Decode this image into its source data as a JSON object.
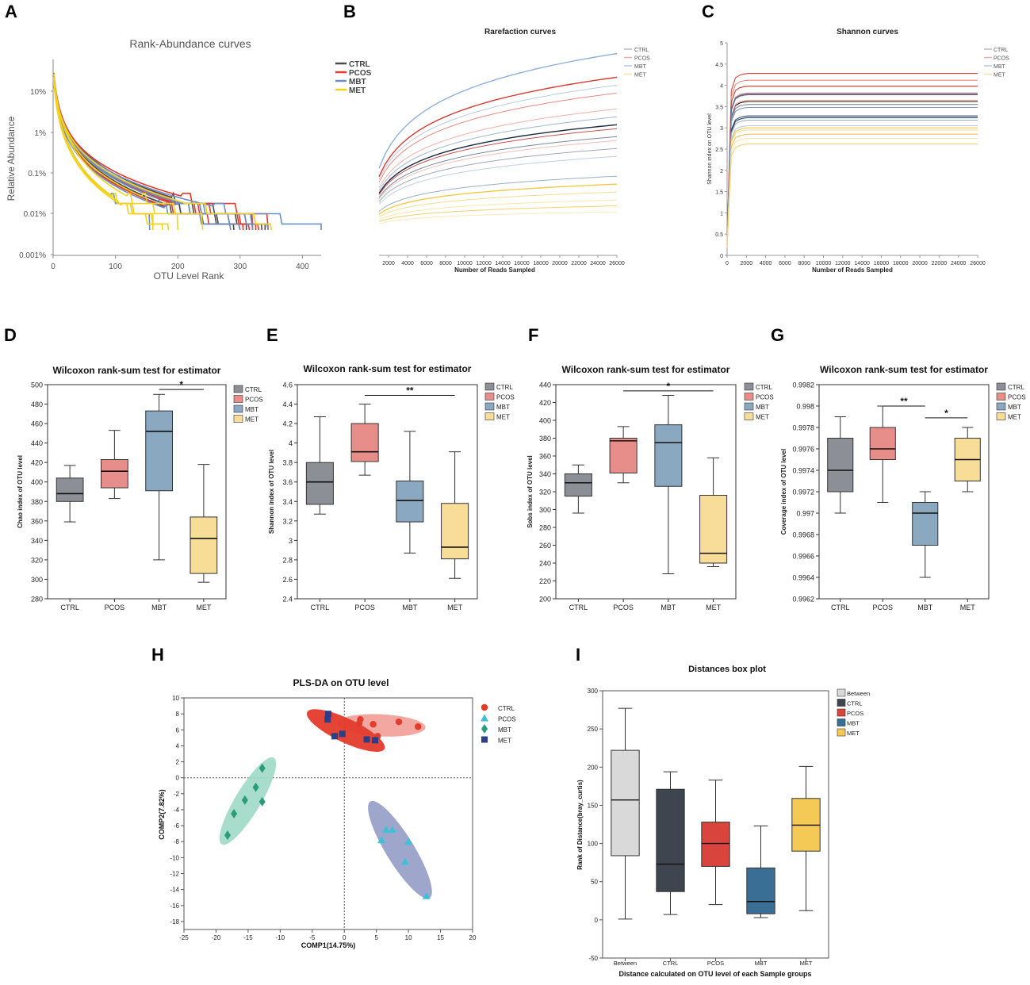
{
  "colors": {
    "CTRL": "#4a4a4a",
    "PCOS": "#e8382a",
    "MBT": "#6a8fc6",
    "MET": "#f2d21c",
    "box_ctrl": "#8c8f96",
    "box_pcos": "#e88e8a",
    "box_mbt": "#8aa8c0",
    "box_met": "#f8dd98",
    "i_between": "#d9d9d9",
    "i_ctrl": "#3f454e",
    "i_pcos": "#d9443c",
    "i_mbt": "#3b6e94",
    "i_met": "#f5c955",
    "h_ctrl": "#e33b2c",
    "h_pcos": "#3fbfd8",
    "h_mbt": "#2a9c7a",
    "h_met": "#2c3e86"
  },
  "chart_data": [
    {
      "id": "A",
      "panel_letter": "A",
      "type": "line",
      "title": "Rank-Abundance curves",
      "xlabel": "OTU Level Rank",
      "ylabel": "Relative Abundance",
      "xlim": [
        0,
        430
      ],
      "xticks": [
        "0",
        "100",
        "200",
        "300",
        "400"
      ],
      "yscale": "log",
      "ylim": [
        1e-05,
        0.5
      ],
      "yticks": [
        "10%",
        "1%",
        "0.1%",
        "0.01%",
        "0.001%"
      ],
      "legend": [
        "CTRL",
        "PCOS",
        "MBT",
        "MET"
      ],
      "series": [
        {
          "name": "CTRL",
          "endpoints": [
            300,
            320,
            340,
            310,
            290,
            335
          ]
        },
        {
          "name": "PCOS",
          "endpoints": [
            320,
            330,
            345,
            315,
            305,
            325
          ]
        },
        {
          "name": "MBT",
          "endpoints": [
            430,
            345,
            300,
            285,
            320,
            155
          ]
        },
        {
          "name": "MET",
          "endpoints": [
            160,
            175,
            185,
            200,
            350,
            240
          ]
        }
      ]
    },
    {
      "id": "B",
      "panel_letter": "B",
      "type": "line",
      "title": "Rarefaction curves",
      "xlabel": "Number of Reads Sampled",
      "ylabel": "",
      "xlim": [
        1000,
        26000
      ],
      "xticks": [
        "2000",
        "4000",
        "6000",
        "8000",
        "10000",
        "12000",
        "14000",
        "16000",
        "18000",
        "20000",
        "22000",
        "24000",
        "26000"
      ],
      "legend": [
        "CTRL",
        "PCOS",
        "MBT",
        "MET"
      ],
      "series": [
        {
          "name": "CTRL",
          "finals": [
            0.62,
            0.56,
            0.5
          ]
        },
        {
          "name": "PCOS",
          "finals": [
            0.86,
            0.78,
            0.7,
            0.6,
            0.54
          ]
        },
        {
          "name": "MBT",
          "finals": [
            0.98,
            0.82,
            0.66,
            0.46,
            0.36
          ]
        },
        {
          "name": "MET",
          "finals": [
            0.32,
            0.28,
            0.24,
            0.21,
            0.18
          ]
        }
      ]
    },
    {
      "id": "C",
      "panel_letter": "C",
      "type": "line",
      "title": "Shannon curves",
      "xlabel": "Number of Reads Sampled",
      "ylabel": "Shannon index on OTU level",
      "xlim": [
        0,
        26000
      ],
      "ylim": [
        0,
        5
      ],
      "xticks": [
        "0",
        "2000",
        "4000",
        "6000",
        "8000",
        "10000",
        "12000",
        "14000",
        "16000",
        "18000",
        "20000",
        "22000",
        "24000",
        "26000"
      ],
      "yticks": [
        "0",
        "0.5",
        "1",
        "1.5",
        "2",
        "2.5",
        "3",
        "3.5",
        "4",
        "4.5",
        "5"
      ],
      "legend": [
        "CTRL",
        "PCOS",
        "MBT",
        "MET"
      ],
      "series": [
        {
          "name": "CTRL",
          "values": [
            3.62,
            3.55,
            3.24,
            3.82
          ]
        },
        {
          "name": "PCOS",
          "values": [
            4.28,
            4.12,
            3.98,
            3.8,
            3.65
          ]
        },
        {
          "name": "MBT",
          "values": [
            3.78,
            3.48,
            3.28,
            3.18,
            3.05
          ]
        },
        {
          "name": "MET",
          "values": [
            3.0,
            2.95,
            2.85,
            2.75,
            2.62
          ]
        }
      ]
    },
    {
      "id": "D",
      "panel_letter": "D",
      "type": "box",
      "title": "Wilcoxon rank-sum test for estimator",
      "ylabel": "Chao index of OTU level",
      "ylim": [
        280,
        500
      ],
      "yticks": [
        "280",
        "300",
        "320",
        "340",
        "360",
        "380",
        "400",
        "420",
        "440",
        "460",
        "480",
        "500"
      ],
      "categories": [
        "CTRL",
        "PCOS",
        "MBT",
        "MET"
      ],
      "boxes": [
        {
          "min": 359,
          "q1": 380,
          "median": 388,
          "q3": 404,
          "max": 417
        },
        {
          "min": 383,
          "q1": 394,
          "median": 411,
          "q3": 423,
          "max": 453
        },
        {
          "min": 320,
          "q1": 391,
          "median": 452,
          "q3": 473,
          "max": 490
        },
        {
          "min": 297,
          "q1": 306,
          "median": 342,
          "q3": 364,
          "max": 418
        }
      ],
      "significance": [
        {
          "from": 2,
          "to": 3,
          "label": "*",
          "y": 495
        }
      ],
      "legend": [
        "CTRL",
        "PCOS",
        "MBT",
        "MET"
      ]
    },
    {
      "id": "E",
      "panel_letter": "E",
      "type": "box",
      "title": "Wilcoxon rank-sum test for estimator",
      "ylabel": "Shannon index of OTU level",
      "ylim": [
        2.4,
        4.6
      ],
      "yticks": [
        "2.4",
        "2.6",
        "2.8",
        "3",
        "3.2",
        "3.4",
        "3.6",
        "3.8",
        "4",
        "4.2",
        "4.4",
        "4.6"
      ],
      "categories": [
        "CTRL",
        "PCOS",
        "MBT",
        "MET"
      ],
      "boxes": [
        {
          "min": 3.27,
          "q1": 3.37,
          "median": 3.6,
          "q3": 3.8,
          "max": 4.27
        },
        {
          "min": 3.67,
          "q1": 3.81,
          "median": 3.91,
          "q3": 4.2,
          "max": 4.4
        },
        {
          "min": 2.87,
          "q1": 3.19,
          "median": 3.41,
          "q3": 3.61,
          "max": 4.12
        },
        {
          "min": 2.61,
          "q1": 2.81,
          "median": 2.93,
          "q3": 3.38,
          "max": 3.91
        }
      ],
      "significance": [
        {
          "from": 1,
          "to": 3,
          "label": "**",
          "y": 4.49
        }
      ],
      "legend": [
        "CTRL",
        "PCOS",
        "MBT",
        "MET"
      ]
    },
    {
      "id": "F",
      "panel_letter": "F",
      "type": "box",
      "title": "Wilcoxon rank-sum test for estimator",
      "ylabel": "Sobs index of OTU level",
      "ylim": [
        200,
        440
      ],
      "yticks": [
        "200",
        "220",
        "240",
        "260",
        "280",
        "300",
        "320",
        "340",
        "360",
        "380",
        "400",
        "420",
        "440"
      ],
      "categories": [
        "CTRL",
        "PCOS",
        "MBT",
        "MET"
      ],
      "boxes": [
        {
          "min": 296,
          "q1": 315,
          "median": 330,
          "q3": 340,
          "max": 350
        },
        {
          "min": 330,
          "q1": 341,
          "median": 377,
          "q3": 380,
          "max": 393
        },
        {
          "min": 228,
          "q1": 326,
          "median": 375,
          "q3": 395,
          "max": 428
        },
        {
          "min": 236,
          "q1": 240,
          "median": 251,
          "q3": 316,
          "max": 358
        }
      ],
      "significance": [
        {
          "from": 1,
          "to": 3,
          "label": "*",
          "y": 433
        }
      ],
      "legend": [
        "CTRL",
        "PCOS",
        "MBT",
        "MET"
      ]
    },
    {
      "id": "G",
      "panel_letter": "G",
      "type": "box",
      "title": "Wilcoxon rank-sum test for estimator",
      "ylabel": "Coverage index of OTU level",
      "ylim": [
        0.9962,
        0.9982
      ],
      "yticks": [
        "0.9962",
        "0.9964",
        "0.9966",
        "0.9968",
        "0.997",
        "0.9972",
        "0.9974",
        "0.9976",
        "0.9978",
        "0.998",
        "0.9982"
      ],
      "categories": [
        "CTRL",
        "PCOS",
        "MBT",
        "MET"
      ],
      "boxes": [
        {
          "min": 0.997,
          "q1": 0.9972,
          "median": 0.9974,
          "q3": 0.9977,
          "max": 0.9979
        },
        {
          "min": 0.9971,
          "q1": 0.9975,
          "median": 0.9976,
          "q3": 0.9978,
          "max": 0.998
        },
        {
          "min": 0.9964,
          "q1": 0.9967,
          "median": 0.997,
          "q3": 0.9971,
          "max": 0.9972
        },
        {
          "min": 0.9972,
          "q1": 0.9973,
          "median": 0.9975,
          "q3": 0.9977,
          "max": 0.9978
        }
      ],
      "significance": [
        {
          "from": 1,
          "to": 2,
          "label": "**",
          "y": 0.998
        },
        {
          "from": 2,
          "to": 3,
          "label": "*",
          "y": 0.99789
        }
      ],
      "legend": [
        "CTRL",
        "PCOS",
        "MBT",
        "MET"
      ]
    },
    {
      "id": "H",
      "panel_letter": "H",
      "type": "scatter",
      "title": "PLS-DA on OTU level",
      "xlabel": "COMP1(14.75%)",
      "ylabel": "COMP2(7.82%)",
      "xlim": [
        -25,
        20
      ],
      "ylim": [
        -19,
        10
      ],
      "xticks": [
        "-25",
        "-20",
        "-15",
        "-10",
        "-5",
        "0",
        "5",
        "10",
        "15",
        "20"
      ],
      "yticks": [
        "-18",
        "-16",
        "-14",
        "-12",
        "-10",
        "-8",
        "-6",
        "-4",
        "-2",
        "0",
        "2",
        "4",
        "6",
        "8",
        "10"
      ],
      "legend": [
        "CTRL",
        "PCOS",
        "MBT",
        "MET"
      ],
      "series": [
        {
          "name": "CTRL",
          "marker": "circle",
          "x": [
            2.5,
            2.3,
            4.5,
            8.5,
            11.5,
            5.2
          ],
          "y": [
            7.3,
            6.8,
            6.7,
            7.0,
            6.4,
            5.2
          ]
        },
        {
          "name": "PCOS",
          "marker": "triangle",
          "x": [
            6.5,
            7.5,
            5.8,
            10.0,
            9.5,
            12.8
          ],
          "y": [
            -6.5,
            -6.5,
            -7.8,
            -8.0,
            -10.5,
            -14.8
          ]
        },
        {
          "name": "MBT",
          "marker": "diamond",
          "x": [
            -12.8,
            -13.8,
            -15.5,
            -17.2,
            -18.2,
            -12.8
          ],
          "y": [
            1.2,
            -1.2,
            -2.8,
            -4.5,
            -7.2,
            -3.0
          ]
        },
        {
          "name": "MET",
          "marker": "square",
          "x": [
            -2.5,
            -2.6,
            -1.5,
            -0.3,
            3.5,
            4.8
          ],
          "y": [
            8.0,
            7.3,
            5.2,
            5.5,
            4.8,
            4.7
          ]
        }
      ]
    },
    {
      "id": "I",
      "panel_letter": "I",
      "type": "box",
      "title": "Distances box plot",
      "xlabel": "Distance calculated on OTU level of each Sample groups",
      "ylabel": "Rank of Distance(bray_curtis)",
      "ylim": [
        -50,
        300
      ],
      "yticks": [
        "-50",
        "0",
        "50",
        "100",
        "150",
        "200",
        "250",
        "300"
      ],
      "categories": [
        "Between",
        "CTRL",
        "PCOS",
        "MBT",
        "MET"
      ],
      "boxes": [
        {
          "min": 1,
          "q1": 84,
          "median": 157,
          "q3": 222,
          "max": 277
        },
        {
          "min": 7,
          "q1": 37,
          "median": 73,
          "q3": 171,
          "max": 194
        },
        {
          "min": 20,
          "q1": 70,
          "median": 100,
          "q3": 128,
          "max": 183
        },
        {
          "min": 3,
          "q1": 8,
          "median": 24,
          "q3": 68,
          "max": 123
        },
        {
          "min": 12,
          "q1": 90,
          "median": 124,
          "q3": 159,
          "max": 201
        }
      ],
      "legend": [
        "Between",
        "CTRL",
        "PCOS",
        "MBT",
        "MET"
      ]
    }
  ]
}
